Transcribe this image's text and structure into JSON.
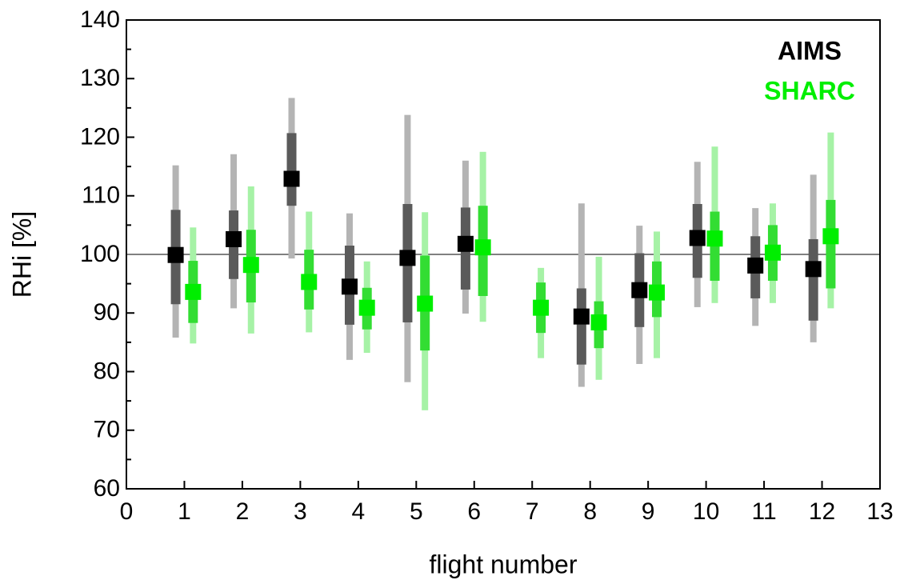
{
  "chart_data": {
    "type": "range-plot",
    "xlabel": "flight number",
    "ylabel": "RHi [%]",
    "x": [
      1,
      2,
      3,
      4,
      5,
      6,
      7,
      8,
      9,
      10,
      11,
      12
    ],
    "xlim": [
      0,
      13
    ],
    "xticks": [
      0,
      1,
      2,
      3,
      4,
      5,
      6,
      7,
      8,
      9,
      10,
      11,
      12,
      13
    ],
    "ylim": [
      60,
      140
    ],
    "yticks": [
      60,
      70,
      80,
      90,
      100,
      110,
      120,
      130,
      140
    ],
    "yminorticks": [
      65,
      75,
      85,
      95,
      105,
      115,
      125,
      135
    ],
    "hline": 100,
    "legend": "upper right",
    "series": [
      {
        "name": "AIMS",
        "color": "#000000",
        "box_color": "#5a5a5a",
        "whisker_color": "#b4b4b4",
        "values": [
          99.9,
          102.6,
          112.9,
          94.5,
          99.4,
          101.8,
          null,
          89.4,
          93.9,
          102.8,
          98.1,
          97.5
        ],
        "q1": [
          91.5,
          95.8,
          108.3,
          88.0,
          88.4,
          94.0,
          null,
          81.2,
          87.6,
          96.0,
          92.5,
          88.7
        ],
        "q3": [
          107.6,
          107.5,
          120.7,
          101.5,
          108.6,
          108.0,
          null,
          94.2,
          100.2,
          108.6,
          103.1,
          102.6
        ],
        "whisker_low": [
          85.8,
          90.8,
          99.3,
          82.0,
          78.2,
          89.9,
          null,
          77.4,
          81.3,
          91.0,
          87.8,
          85.0
        ],
        "whisker_high": [
          115.2,
          117.1,
          126.7,
          107.0,
          123.8,
          116.0,
          null,
          108.7,
          104.9,
          115.8,
          107.9,
          113.6
        ]
      },
      {
        "name": "SHARC",
        "color": "#00ee00",
        "box_color": "#33dd33",
        "whisker_color": "#a6f2a6",
        "values": [
          93.6,
          98.2,
          95.3,
          90.9,
          91.6,
          101.2,
          90.9,
          88.4,
          93.5,
          102.7,
          100.3,
          103.1
        ],
        "q1": [
          88.3,
          91.8,
          90.6,
          87.2,
          83.6,
          92.9,
          86.6,
          84.0,
          89.3,
          95.5,
          95.5,
          94.2
        ],
        "q3": [
          98.9,
          104.2,
          100.8,
          94.3,
          99.8,
          108.3,
          95.2,
          92.0,
          98.8,
          107.3,
          105.0,
          109.3
        ],
        "whisker_low": [
          84.8,
          86.5,
          86.7,
          83.2,
          73.4,
          88.5,
          82.3,
          78.6,
          82.3,
          91.7,
          91.7,
          90.8
        ],
        "whisker_high": [
          104.6,
          111.6,
          107.3,
          98.8,
          107.2,
          117.5,
          97.7,
          99.6,
          103.9,
          118.4,
          108.7,
          120.8
        ]
      }
    ]
  }
}
